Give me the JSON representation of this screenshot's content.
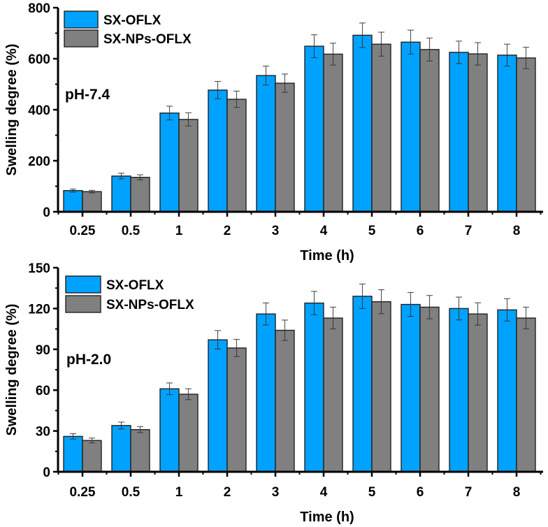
{
  "chart_data": [
    {
      "type": "bar",
      "title": "",
      "annotation": "pH-7.4",
      "xlabel": "Time (h)",
      "ylabel": "Swelling degree (%)",
      "ylim": [
        0,
        800
      ],
      "yticks": [
        0,
        200,
        400,
        600,
        800
      ],
      "categories": [
        "0.25",
        "0.5",
        "1",
        "2",
        "3",
        "4",
        "5",
        "6",
        "7",
        "8"
      ],
      "legend_position": "top-left",
      "grid": false,
      "series": [
        {
          "name": "SX-OFLX",
          "color": "#00A2FF",
          "values": [
            83,
            140,
            387,
            477,
            534,
            649,
            692,
            665,
            625,
            614
          ],
          "errors": [
            6,
            11,
            27,
            34,
            37,
            45,
            48,
            47,
            44,
            43
          ]
        },
        {
          "name": "SX-NPs-OFLX",
          "color": "#808080",
          "values": [
            79,
            135,
            362,
            441,
            504,
            618,
            657,
            636,
            619,
            603
          ],
          "errors": [
            5,
            10,
            26,
            32,
            36,
            43,
            47,
            45,
            44,
            42
          ]
        }
      ]
    },
    {
      "type": "bar",
      "title": "",
      "annotation": "pH-2.0",
      "xlabel": "Time (h)",
      "ylabel": "Swelling degree (%)",
      "ylim": [
        0,
        150
      ],
      "yticks": [
        0,
        30,
        60,
        90,
        120,
        150
      ],
      "categories": [
        "0.25",
        "0.5",
        "1",
        "2",
        "3",
        "4",
        "5",
        "6",
        "7",
        "8"
      ],
      "legend_position": "top-left",
      "grid": false,
      "series": [
        {
          "name": "SX-OFLX",
          "color": "#00A2FF",
          "values": [
            26,
            34,
            61,
            97,
            116,
            124,
            129,
            123,
            120,
            119
          ],
          "errors": [
            2,
            2.5,
            4.3,
            6.8,
            8.1,
            8.6,
            9,
            8.8,
            8.4,
            8.2
          ]
        },
        {
          "name": "SX-NPs-OFLX",
          "color": "#808080",
          "values": [
            23,
            31,
            57,
            91,
            104,
            113,
            125,
            121,
            116,
            113
          ],
          "errors": [
            1.8,
            2.2,
            4,
            6.3,
            7.5,
            8,
            8.8,
            8.6,
            8.2,
            8
          ]
        }
      ]
    }
  ]
}
